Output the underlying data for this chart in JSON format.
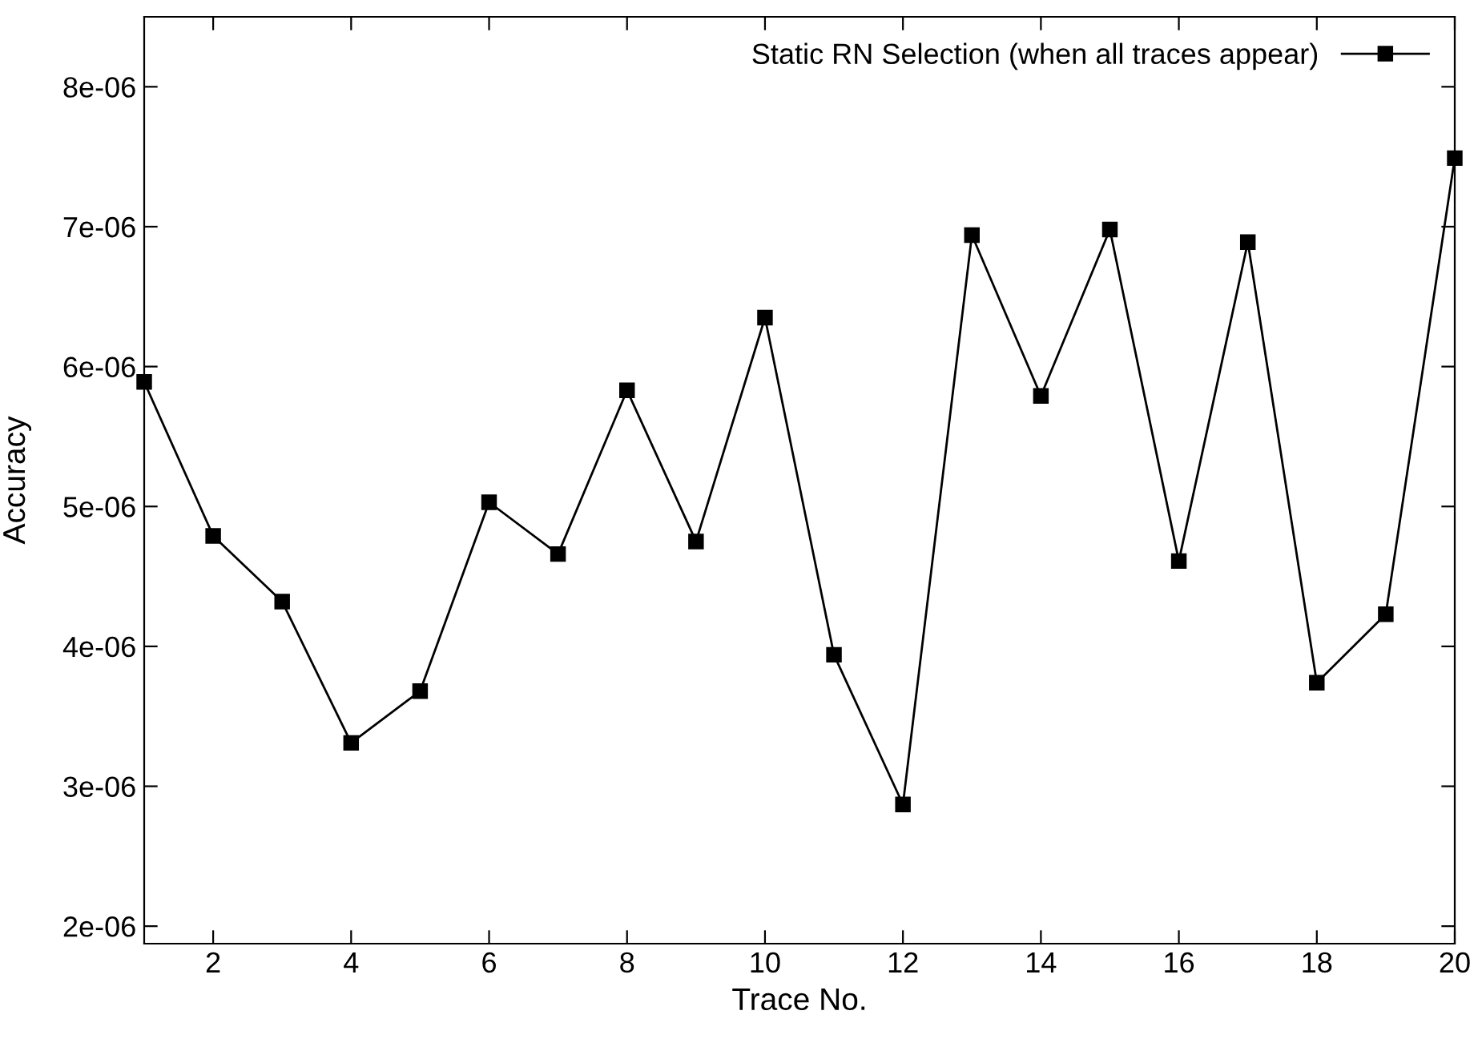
{
  "chart_data": {
    "type": "line",
    "xlabel": "Trace No.",
    "ylabel": "Accuracy",
    "x": [
      1,
      2,
      3,
      4,
      5,
      6,
      7,
      8,
      9,
      10,
      11,
      12,
      13,
      14,
      15,
      16,
      17,
      18,
      19,
      20
    ],
    "series": [
      {
        "name": "Static RN Selection (when all traces appear)",
        "color": "#000000",
        "values": [
          5.89e-06,
          4.79e-06,
          4.32e-06,
          3.31e-06,
          3.68e-06,
          5.03e-06,
          4.66e-06,
          5.83e-06,
          4.75e-06,
          6.35e-06,
          3.94e-06,
          2.87e-06,
          6.94e-06,
          5.79e-06,
          6.98e-06,
          4.61e-06,
          6.89e-06,
          3.74e-06,
          4.23e-06,
          7.49e-06
        ]
      }
    ],
    "xlim": [
      1,
      20
    ],
    "xticks": [
      2,
      4,
      6,
      8,
      10,
      12,
      14,
      16,
      18,
      20
    ],
    "ylim": [
      1.875e-06,
      8.5e-06
    ],
    "yticks": [
      {
        "value": 2e-06,
        "label": "2e-06"
      },
      {
        "value": 3e-06,
        "label": "3e-06"
      },
      {
        "value": 4e-06,
        "label": "4e-06"
      },
      {
        "value": 5e-06,
        "label": "5e-06"
      },
      {
        "value": 6e-06,
        "label": "6e-06"
      },
      {
        "value": 7e-06,
        "label": "7e-06"
      },
      {
        "value": 8e-06,
        "label": "8e-06"
      }
    ],
    "marker": "square",
    "line_style": "solid",
    "legend": "top right",
    "grid": false
  }
}
